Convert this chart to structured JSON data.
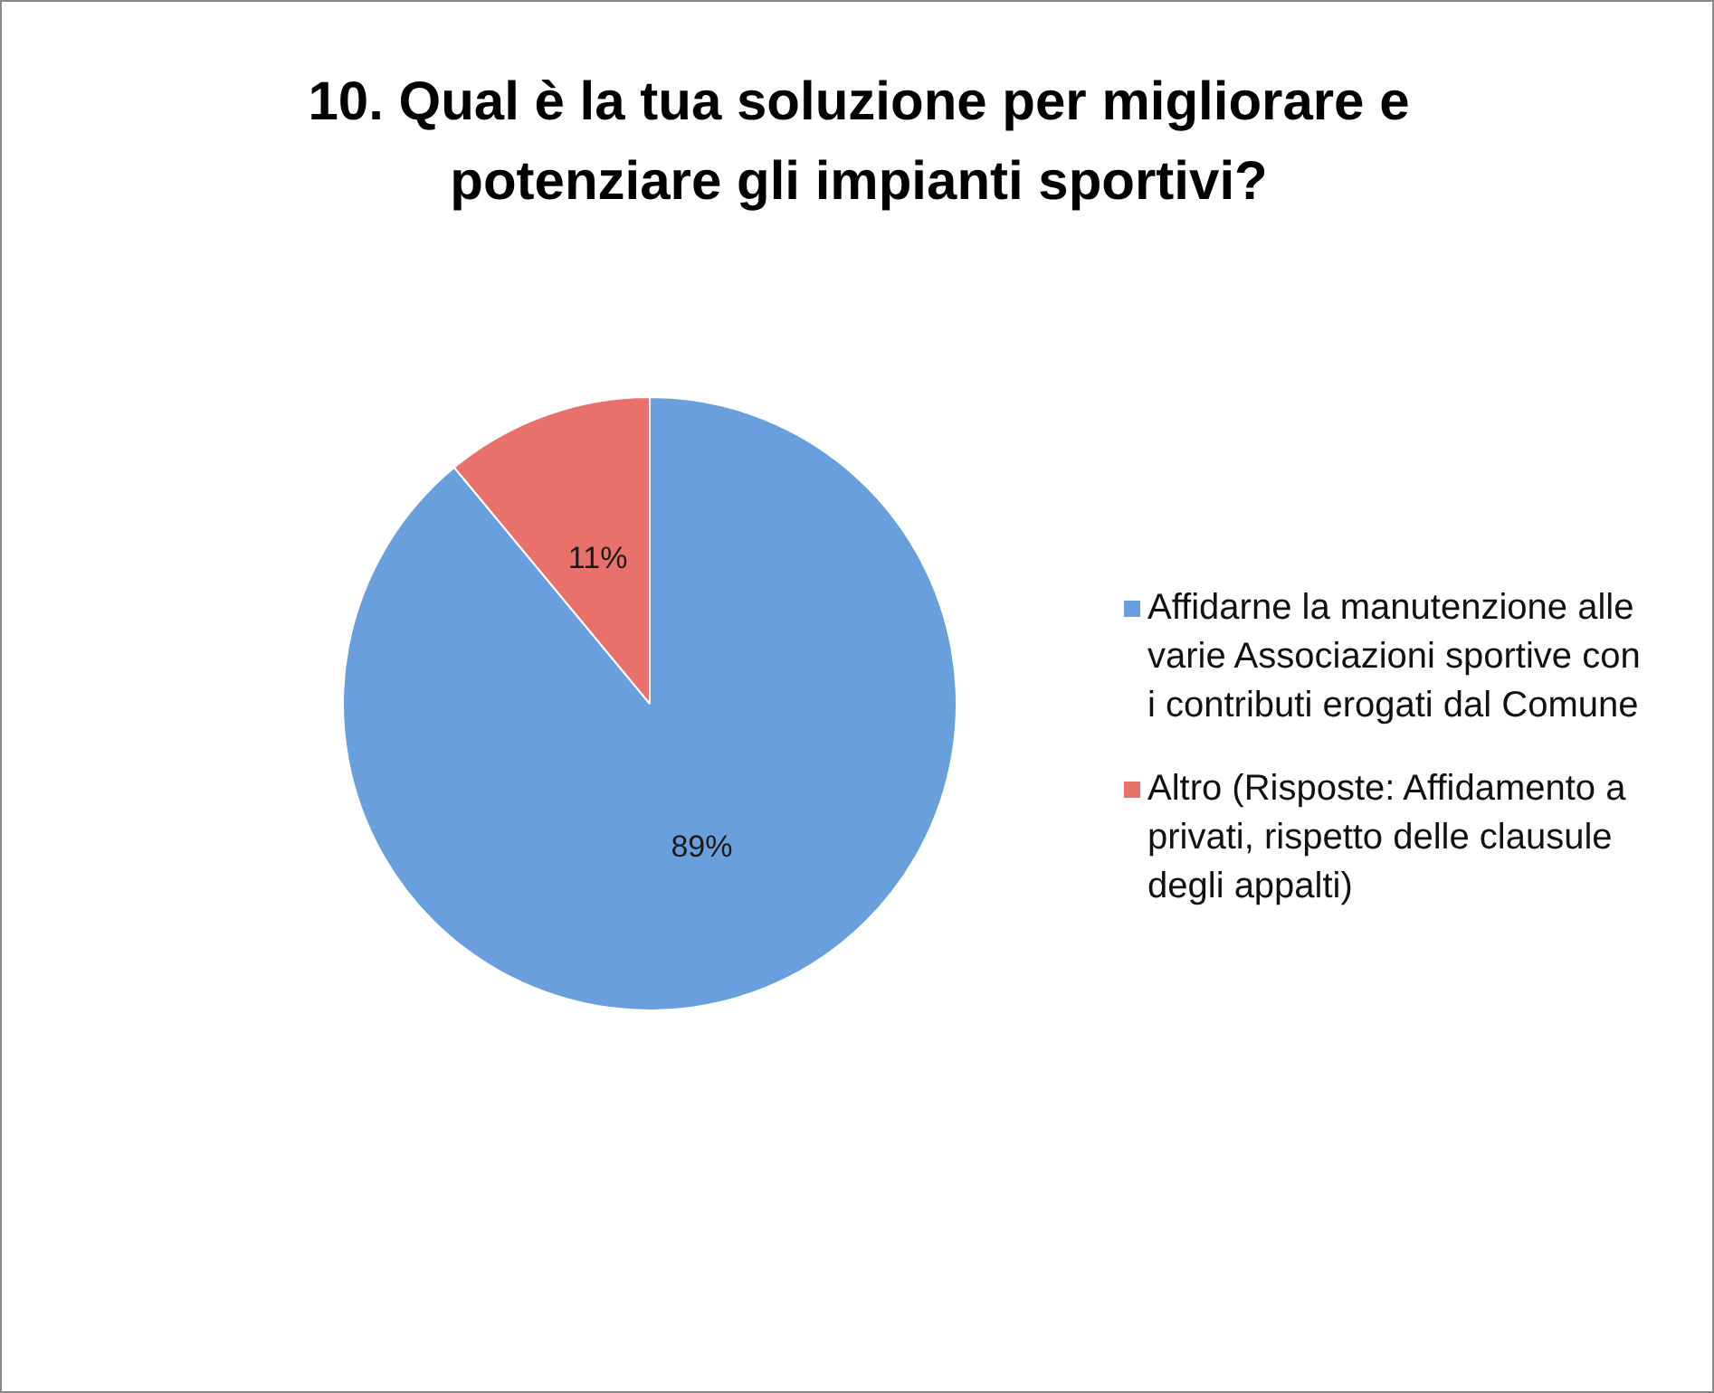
{
  "chart_data": {
    "type": "pie",
    "title": "10. Qual è la tua soluzione per migliorare e potenziare gli impianti sportivi?",
    "categories": [
      "Affidarne la manutenzione alle varie Associazioni sportive con i contributi erogati dal Comune",
      "Altro (Risposte: Affidamento a privati, rispetto delle clausule degli appalti)"
    ],
    "values": [
      89,
      11
    ],
    "colors": [
      "#6a9fdd",
      "#e8716b"
    ],
    "value_labels": [
      "89%",
      "11%"
    ],
    "legend": "right"
  }
}
